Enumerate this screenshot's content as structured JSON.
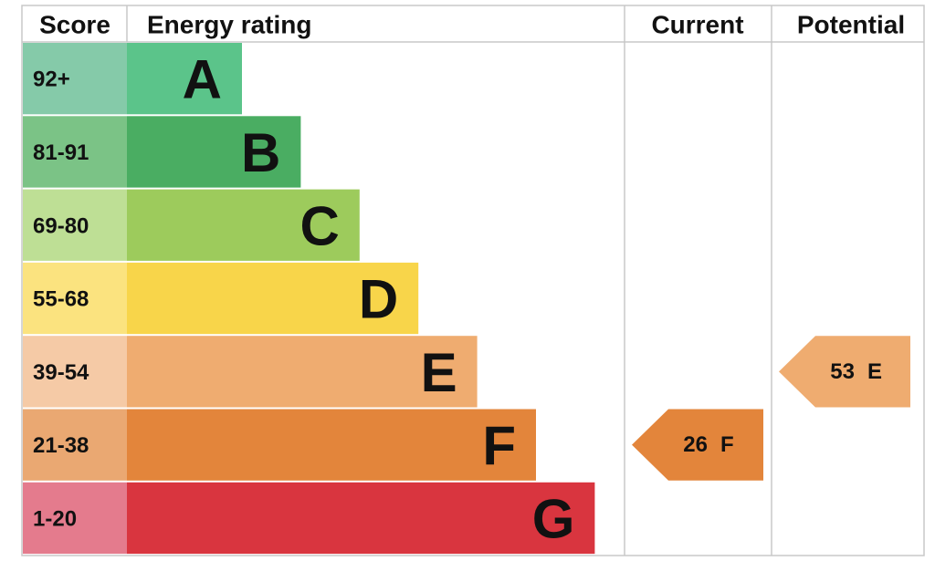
{
  "header": {
    "score": "Score",
    "rating": "Energy rating",
    "current": "Current",
    "potential": "Potential"
  },
  "rows": [
    {
      "score": "92+",
      "band": "A",
      "color": "#5bc48a",
      "score_color": "#85caa9"
    },
    {
      "score": "81-91",
      "band": "B",
      "color": "#4aad62",
      "score_color": "#7bc386"
    },
    {
      "score": "69-80",
      "band": "C",
      "color": "#9dcb5c",
      "score_color": "#bedf95"
    },
    {
      "score": "55-68",
      "band": "D",
      "color": "#f8d54a",
      "score_color": "#fbe37f"
    },
    {
      "score": "39-54",
      "band": "E",
      "color": "#efac70",
      "score_color": "#f5caa6"
    },
    {
      "score": "21-38",
      "band": "F",
      "color": "#e3853b",
      "score_color": "#eaa872"
    },
    {
      "score": "1-20",
      "band": "G",
      "color": "#d9353f",
      "score_color": "#e47b8d"
    }
  ],
  "current": {
    "value": 26,
    "band": "F"
  },
  "potential": {
    "value": 53,
    "band": "E"
  }
}
